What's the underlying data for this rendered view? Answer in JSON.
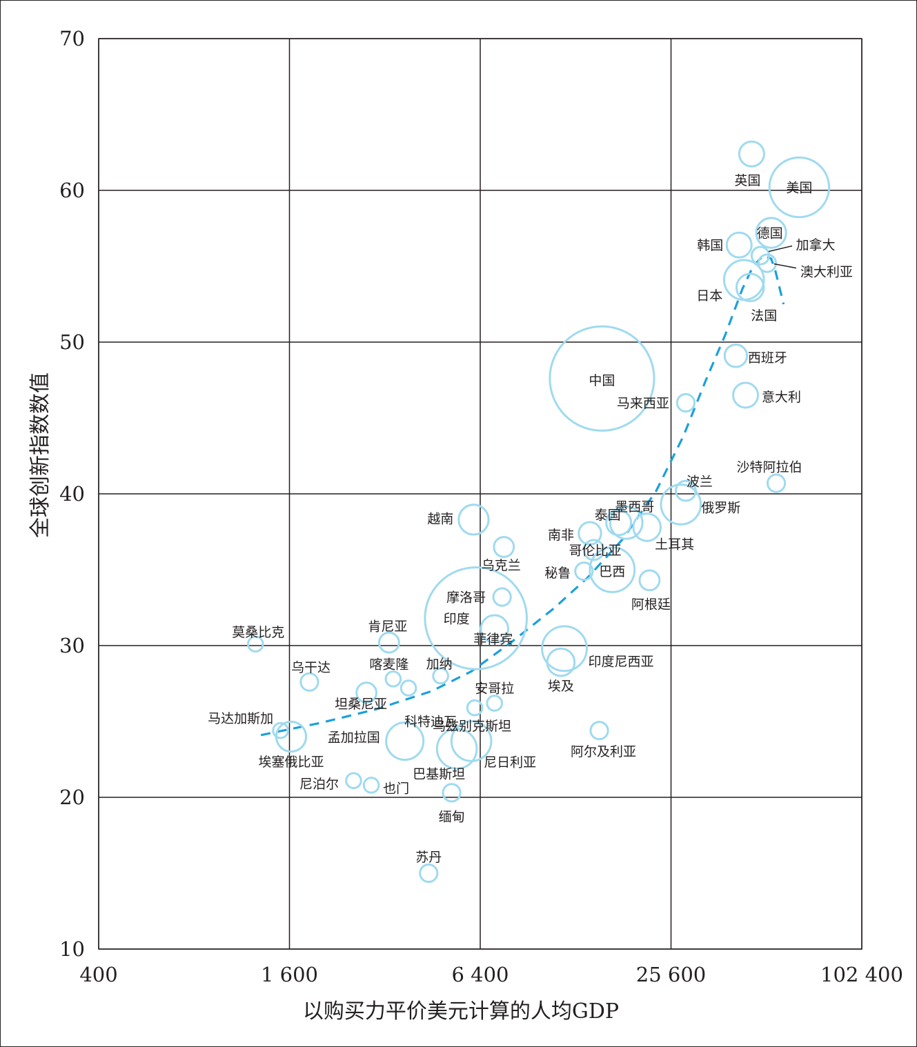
{
  "chart_data": {
    "type": "scatter",
    "title": "",
    "xlabel": "以购买力平价美元计算的人均GDP",
    "ylabel": "全球创新指数数值",
    "x_scale": "log2",
    "xlim": [
      400,
      102400
    ],
    "ylim": [
      10,
      70
    ],
    "x_ticks": [
      400,
      1600,
      6400,
      25600,
      102400
    ],
    "x_tick_labels": [
      "400",
      "1 600",
      "6 400",
      "25 600",
      "102 400"
    ],
    "y_ticks": [
      10,
      20,
      30,
      40,
      50,
      60,
      70
    ],
    "y_tick_labels": [
      "10",
      "20",
      "30",
      "40",
      "50",
      "60",
      "70"
    ],
    "grid": true,
    "bubble_color": "#9fdaef",
    "trend_color": "#1ba0dc",
    "points": [
      {
        "label": "英国",
        "x": 46000,
        "y": 62.4,
        "size": 1.0
      },
      {
        "label": "美国",
        "x": 65000,
        "y": 60.2,
        "size": 2.4
      },
      {
        "label": "德国",
        "x": 53000,
        "y": 57.2,
        "size": 1.2
      },
      {
        "label": "韩国",
        "x": 42000,
        "y": 56.4,
        "size": 1.0
      },
      {
        "label": "加拿大",
        "x": 49000,
        "y": 55.7,
        "size": 0.7
      },
      {
        "label": "澳大利亚",
        "x": 51500,
        "y": 55.2,
        "size": 0.7
      },
      {
        "label": "日本",
        "x": 43500,
        "y": 54.1,
        "size": 1.6
      },
      {
        "label": "法国",
        "x": 45500,
        "y": 53.6,
        "size": 1.1
      },
      {
        "label": "西班牙",
        "x": 41000,
        "y": 49.1,
        "size": 0.9
      },
      {
        "label": "意大利",
        "x": 44000,
        "y": 46.5,
        "size": 1.0
      },
      {
        "label": "中国",
        "x": 15500,
        "y": 47.6,
        "size": 4.2
      },
      {
        "label": "马来西亚",
        "x": 28500,
        "y": 46.0,
        "size": 0.7
      },
      {
        "label": "沙特阿拉伯",
        "x": 55000,
        "y": 40.7,
        "size": 0.7
      },
      {
        "label": "波兰",
        "x": 28500,
        "y": 40.2,
        "size": 0.8
      },
      {
        "label": "俄罗斯",
        "x": 27500,
        "y": 39.3,
        "size": 1.6
      },
      {
        "label": "越南",
        "x": 6100,
        "y": 38.3,
        "size": 1.2
      },
      {
        "label": "墨西哥",
        "x": 18500,
        "y": 38.1,
        "size": 1.3
      },
      {
        "label": "泰国",
        "x": 17500,
        "y": 38.1,
        "size": 1.0
      },
      {
        "label": "土耳其",
        "x": 21500,
        "y": 37.8,
        "size": 1.1
      },
      {
        "label": "南非",
        "x": 14200,
        "y": 37.4,
        "size": 0.9
      },
      {
        "label": "乌克兰",
        "x": 7600,
        "y": 36.5,
        "size": 0.8
      },
      {
        "label": "哥伦比亚",
        "x": 14600,
        "y": 36.3,
        "size": 0.8
      },
      {
        "label": "巴西",
        "x": 16700,
        "y": 35.0,
        "size": 1.8
      },
      {
        "label": "秘鲁",
        "x": 13600,
        "y": 34.9,
        "size": 0.7
      },
      {
        "label": "阿根廷",
        "x": 21900,
        "y": 34.3,
        "size": 0.8
      },
      {
        "label": "摩洛哥",
        "x": 7500,
        "y": 33.2,
        "size": 0.7
      },
      {
        "label": "印度",
        "x": 6200,
        "y": 31.8,
        "size": 4.1
      },
      {
        "label": "菲律宾",
        "x": 7100,
        "y": 31.1,
        "size": 1.1
      },
      {
        "label": "印度尼西亚",
        "x": 11800,
        "y": 29.8,
        "size": 1.8
      },
      {
        "label": "埃及",
        "x": 11500,
        "y": 28.9,
        "size": 1.1
      },
      {
        "label": "莫桑比克",
        "x": 1250,
        "y": 30.1,
        "size": 0.6
      },
      {
        "label": "肯尼亚",
        "x": 3300,
        "y": 30.2,
        "size": 0.8
      },
      {
        "label": "乌干达",
        "x": 1850,
        "y": 27.6,
        "size": 0.7
      },
      {
        "label": "喀麦隆",
        "x": 3400,
        "y": 27.8,
        "size": 0.6
      },
      {
        "label": "加纳",
        "x": 4800,
        "y": 28.0,
        "size": 0.6
      },
      {
        "label": "坦桑尼亚",
        "x": 2800,
        "y": 26.9,
        "size": 0.8
      },
      {
        "label": "科特迪瓦",
        "x": 3800,
        "y": 27.2,
        "size": 0.6
      },
      {
        "label": "安哥拉",
        "x": 7100,
        "y": 26.2,
        "size": 0.6
      },
      {
        "label": "乌兹别克斯坦",
        "x": 6150,
        "y": 25.9,
        "size": 0.6
      },
      {
        "label": "马达加斯加",
        "x": 1500,
        "y": 24.4,
        "size": 0.6
      },
      {
        "label": "埃塞俄比亚",
        "x": 1620,
        "y": 24.0,
        "size": 1.2
      },
      {
        "label": "孟加拉国",
        "x": 3700,
        "y": 23.7,
        "size": 1.5
      },
      {
        "label": "巴基斯坦",
        "x": 5400,
        "y": 23.2,
        "size": 1.6
      },
      {
        "label": "尼日利亚",
        "x": 6000,
        "y": 23.7,
        "size": 1.6
      },
      {
        "label": "阿尔及利亚",
        "x": 15200,
        "y": 24.4,
        "size": 0.7
      },
      {
        "label": "尼泊尔",
        "x": 2550,
        "y": 21.1,
        "size": 0.6
      },
      {
        "label": "也门",
        "x": 2900,
        "y": 20.8,
        "size": 0.6
      },
      {
        "label": "缅甸",
        "x": 5200,
        "y": 20.3,
        "size": 0.7
      },
      {
        "label": "苏丹",
        "x": 4400,
        "y": 15.0,
        "size": 0.7
      }
    ],
    "trend_line": {
      "x": [
        1300,
        2000,
        3000,
        4500,
        6000,
        8000,
        11000,
        14000,
        18000,
        23000,
        28000,
        33000,
        38000,
        43000,
        46500,
        50000,
        53000,
        54500,
        56000,
        58000
      ],
      "y": [
        24.1,
        24.9,
        25.8,
        27.0,
        28.3,
        30.2,
        32.5,
        34.5,
        37.0,
        40.2,
        43.8,
        47.5,
        50.5,
        53.5,
        55.0,
        55.7,
        55.5,
        54.8,
        53.8,
        52.5
      ]
    }
  }
}
